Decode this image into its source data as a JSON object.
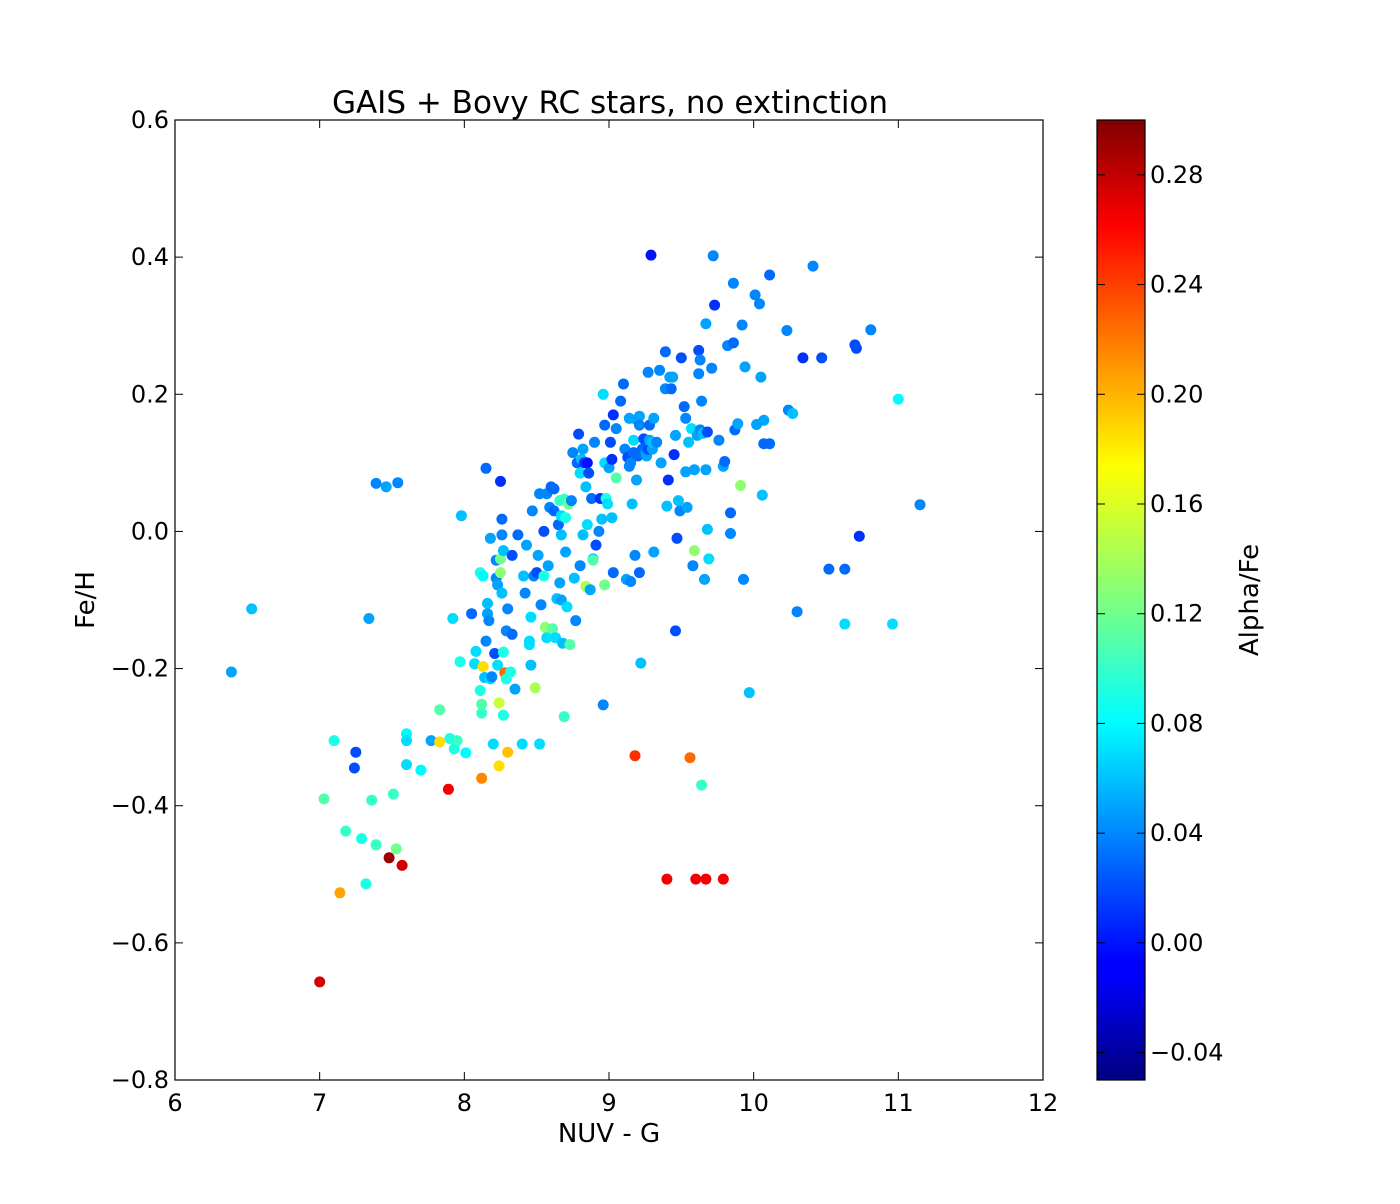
{
  "chart_data": {
    "type": "scatter",
    "title": "GAIS + Bovy RC stars, no extinction",
    "xlabel": "NUV - G",
    "ylabel": "Fe/H",
    "xlim": [
      6,
      12
    ],
    "ylim": [
      -0.8,
      0.6
    ],
    "xticks": [
      "6",
      "7",
      "8",
      "9",
      "10",
      "11",
      "12"
    ],
    "yticks": [
      "−0.8",
      "−0.6",
      "−0.4",
      "−0.2",
      "0.0",
      "0.2",
      "0.4",
      "0.6"
    ],
    "grid": false,
    "colorbar": {
      "label": "Alpha/Fe",
      "colormap": "jet",
      "range": [
        -0.05,
        0.3
      ],
      "ticks": [
        "−0.04",
        "0.00",
        "0.04",
        "0.08",
        "0.12",
        "0.16",
        "0.20",
        "0.24",
        "0.28"
      ]
    },
    "points": [
      [
        6.39,
        -0.205,
        0.05
      ],
      [
        6.53,
        -0.113,
        0.06
      ],
      [
        7.0,
        -0.657,
        0.27
      ],
      [
        7.03,
        -0.39,
        0.11
      ],
      [
        7.1,
        -0.305,
        0.09
      ],
      [
        7.14,
        -0.527,
        0.2
      ],
      [
        7.18,
        -0.437,
        0.1
      ],
      [
        7.24,
        -0.345,
        0.02
      ],
      [
        7.25,
        -0.322,
        0.02
      ],
      [
        7.29,
        -0.448,
        0.09
      ],
      [
        7.32,
        -0.514,
        0.09
      ],
      [
        7.34,
        -0.127,
        0.05
      ],
      [
        7.36,
        -0.392,
        0.1
      ],
      [
        7.39,
        0.07,
        0.04
      ],
      [
        7.39,
        -0.457,
        0.1
      ],
      [
        7.46,
        0.065,
        0.05
      ],
      [
        7.48,
        -0.476,
        0.29
      ],
      [
        7.51,
        -0.383,
        0.1
      ],
      [
        7.53,
        -0.463,
        0.12
      ],
      [
        7.54,
        0.071,
        0.04
      ],
      [
        7.57,
        -0.487,
        0.27
      ],
      [
        7.6,
        -0.295,
        0.08
      ],
      [
        7.6,
        -0.305,
        0.07
      ],
      [
        7.6,
        -0.34,
        0.07
      ],
      [
        7.7,
        -0.348,
        0.08
      ],
      [
        7.77,
        -0.305,
        0.05
      ],
      [
        7.83,
        -0.26,
        0.11
      ],
      [
        7.83,
        -0.307,
        0.18
      ],
      [
        7.89,
        -0.376,
        0.26
      ],
      [
        7.9,
        -0.302,
        0.09
      ],
      [
        7.92,
        -0.127,
        0.07
      ],
      [
        7.93,
        -0.317,
        0.09
      ],
      [
        7.95,
        -0.305,
        0.1
      ],
      [
        7.97,
        -0.19,
        0.09
      ],
      [
        7.98,
        0.023,
        0.06
      ],
      [
        8.01,
        -0.323,
        0.08
      ],
      [
        8.05,
        -0.12,
        0.03
      ],
      [
        8.07,
        -0.193,
        0.07
      ],
      [
        8.08,
        -0.175,
        0.07
      ],
      [
        8.11,
        -0.06,
        0.09
      ],
      [
        8.11,
        -0.232,
        0.09
      ],
      [
        8.12,
        -0.252,
        0.11
      ],
      [
        8.12,
        -0.265,
        0.1
      ],
      [
        8.12,
        -0.36,
        0.21
      ],
      [
        8.13,
        -0.065,
        0.08
      ],
      [
        8.13,
        -0.197,
        0.18
      ],
      [
        8.14,
        -0.213,
        0.06
      ],
      [
        8.15,
        0.092,
        0.03
      ],
      [
        8.15,
        -0.16,
        0.04
      ],
      [
        8.16,
        -0.105,
        0.06
      ],
      [
        8.16,
        -0.12,
        0.05
      ],
      [
        8.17,
        -0.13,
        0.04
      ],
      [
        8.18,
        -0.215,
        0.07
      ],
      [
        8.18,
        -0.01,
        0.05
      ],
      [
        8.19,
        -0.212,
        0.04
      ],
      [
        8.2,
        -0.31,
        0.07
      ],
      [
        8.21,
        -0.178,
        0.02
      ],
      [
        8.22,
        -0.042,
        0.04
      ],
      [
        8.22,
        -0.068,
        0.04
      ],
      [
        8.23,
        -0.078,
        0.05
      ],
      [
        8.23,
        -0.195,
        0.07
      ],
      [
        8.24,
        -0.25,
        0.15
      ],
      [
        8.24,
        -0.342,
        0.18
      ],
      [
        8.25,
        0.073,
        0.01
      ],
      [
        8.25,
        -0.04,
        0.12
      ],
      [
        8.25,
        -0.06,
        0.13
      ],
      [
        8.26,
        0.018,
        0.03
      ],
      [
        8.26,
        -0.005,
        0.04
      ],
      [
        8.26,
        -0.09,
        0.06
      ],
      [
        8.27,
        -0.268,
        0.09
      ],
      [
        8.27,
        -0.176,
        0.09
      ],
      [
        8.27,
        -0.028,
        0.06
      ],
      [
        8.28,
        -0.206,
        0.22
      ],
      [
        8.29,
        -0.145,
        0.04
      ],
      [
        8.29,
        -0.215,
        0.09
      ],
      [
        8.3,
        -0.322,
        0.19
      ],
      [
        8.3,
        -0.113,
        0.04
      ],
      [
        8.32,
        -0.205,
        0.09
      ],
      [
        8.33,
        -0.15,
        0.03
      ],
      [
        8.33,
        -0.035,
        0.02
      ],
      [
        8.35,
        -0.23,
        0.05
      ],
      [
        8.37,
        -0.005,
        0.03
      ],
      [
        8.4,
        -0.31,
        0.07
      ],
      [
        8.41,
        -0.065,
        0.06
      ],
      [
        8.42,
        -0.09,
        0.04
      ],
      [
        8.43,
        -0.02,
        0.05
      ],
      [
        8.45,
        -0.16,
        0.07
      ],
      [
        8.45,
        -0.165,
        0.07
      ],
      [
        8.46,
        -0.195,
        0.06
      ],
      [
        8.46,
        -0.125,
        0.07
      ],
      [
        8.47,
        0.03,
        0.04
      ],
      [
        8.48,
        -0.065,
        0.04
      ],
      [
        8.49,
        -0.228,
        0.14
      ],
      [
        8.5,
        -0.06,
        0.02
      ],
      [
        8.51,
        -0.035,
        0.05
      ],
      [
        8.52,
        0.055,
        0.04
      ],
      [
        8.52,
        -0.31,
        0.07
      ],
      [
        8.53,
        -0.107,
        0.04
      ],
      [
        8.55,
        -0.065,
        0.09
      ],
      [
        8.55,
        0.0,
        0.02
      ],
      [
        8.56,
        -0.14,
        0.13
      ],
      [
        8.57,
        0.055,
        0.04
      ],
      [
        8.57,
        -0.155,
        0.07
      ],
      [
        8.58,
        -0.05,
        0.05
      ],
      [
        8.59,
        0.035,
        0.04
      ],
      [
        8.6,
        0.065,
        0.03
      ],
      [
        8.61,
        -0.142,
        0.11
      ],
      [
        8.62,
        0.062,
        0.03
      ],
      [
        8.62,
        0.03,
        0.03
      ],
      [
        8.63,
        -0.155,
        0.07
      ],
      [
        8.64,
        -0.098,
        0.06
      ],
      [
        8.65,
        0.01,
        0.03
      ],
      [
        8.66,
        -0.075,
        0.05
      ],
      [
        8.66,
        0.045,
        0.1
      ],
      [
        8.67,
        -0.1,
        0.05
      ],
      [
        8.67,
        -0.005,
        0.06
      ],
      [
        8.67,
        0.023,
        0.07
      ],
      [
        8.68,
        -0.163,
        0.06
      ],
      [
        8.69,
        0.047,
        0.1
      ],
      [
        8.69,
        -0.27,
        0.1
      ],
      [
        8.7,
        0.02,
        0.09
      ],
      [
        8.7,
        -0.03,
        0.05
      ],
      [
        8.71,
        -0.11,
        0.07
      ],
      [
        8.72,
        0.04,
        0.12
      ],
      [
        8.73,
        -0.165,
        0.11
      ],
      [
        8.74,
        0.045,
        0.04
      ],
      [
        8.75,
        0.115,
        0.04
      ],
      [
        8.76,
        -0.068,
        0.06
      ],
      [
        8.77,
        -0.13,
        0.04
      ],
      [
        8.78,
        0.1,
        0.03
      ],
      [
        8.79,
        0.142,
        0.02
      ],
      [
        8.8,
        0.085,
        0.07
      ],
      [
        8.8,
        -0.05,
        0.04
      ],
      [
        8.81,
        0.105,
        0.06
      ],
      [
        8.82,
        0.12,
        0.05
      ],
      [
        8.82,
        -0.005,
        0.06
      ],
      [
        8.83,
        0.1,
        0.01
      ],
      [
        8.84,
        0.065,
        0.06
      ],
      [
        8.84,
        -0.08,
        0.14
      ],
      [
        8.85,
        0.1,
        0.0
      ],
      [
        8.85,
        0.01,
        0.07
      ],
      [
        8.86,
        0.085,
        0.02
      ],
      [
        8.87,
        -0.085,
        0.05
      ],
      [
        8.88,
        0.048,
        0.03
      ],
      [
        8.89,
        -0.04,
        0.06
      ],
      [
        8.89,
        -0.042,
        0.11
      ],
      [
        8.9,
        0.13,
        0.04
      ],
      [
        8.91,
        -0.02,
        0.02
      ],
      [
        8.93,
        0.0,
        0.04
      ],
      [
        8.94,
        0.048,
        0.01
      ],
      [
        8.95,
        0.018,
        0.06
      ],
      [
        8.96,
        0.2,
        0.07
      ],
      [
        8.96,
        -0.253,
        0.04
      ],
      [
        8.97,
        0.1,
        0.07
      ],
      [
        8.97,
        0.155,
        0.03
      ],
      [
        8.97,
        -0.078,
        0.12
      ],
      [
        8.98,
        0.048,
        0.09
      ],
      [
        8.99,
        0.04,
        0.07
      ],
      [
        9.0,
        0.093,
        0.05
      ],
      [
        9.01,
        0.13,
        0.02
      ],
      [
        9.02,
        0.02,
        0.06
      ],
      [
        9.02,
        0.105,
        0.01
      ],
      [
        9.03,
        -0.06,
        0.03
      ],
      [
        9.03,
        0.17,
        0.01
      ],
      [
        9.05,
        0.078,
        0.11
      ],
      [
        9.05,
        0.15,
        0.04
      ],
      [
        9.08,
        0.19,
        0.03
      ],
      [
        9.1,
        0.215,
        0.03
      ],
      [
        9.11,
        0.12,
        0.04
      ],
      [
        9.12,
        -0.07,
        0.05
      ],
      [
        9.13,
        0.108,
        0.02
      ],
      [
        9.14,
        0.165,
        0.05
      ],
      [
        9.14,
        0.095,
        0.04
      ],
      [
        9.15,
        -0.073,
        0.04
      ],
      [
        9.15,
        0.1,
        0.04
      ],
      [
        9.16,
        0.04,
        0.06
      ],
      [
        9.17,
        0.133,
        0.07
      ],
      [
        9.17,
        0.115,
        0.03
      ],
      [
        9.18,
        -0.327,
        0.24
      ],
      [
        9.18,
        -0.035,
        0.04
      ],
      [
        9.19,
        0.163,
        0.05
      ],
      [
        9.19,
        0.075,
        0.05
      ],
      [
        9.2,
        0.11,
        0.03
      ],
      [
        9.21,
        0.168,
        0.05
      ],
      [
        9.21,
        -0.06,
        0.03
      ],
      [
        9.21,
        0.155,
        0.04
      ],
      [
        9.22,
        -0.192,
        0.06
      ],
      [
        9.23,
        0.12,
        0.03
      ],
      [
        9.24,
        0.135,
        0.02
      ],
      [
        9.25,
        0.115,
        0.04
      ],
      [
        9.26,
        0.11,
        0.05
      ],
      [
        9.27,
        0.232,
        0.04
      ],
      [
        9.27,
        0.12,
        0.02
      ],
      [
        9.28,
        0.133,
        0.05
      ],
      [
        9.28,
        0.155,
        0.03
      ],
      [
        9.29,
        0.403,
        0.0
      ],
      [
        9.3,
        0.12,
        0.05
      ],
      [
        9.3,
        0.13,
        0.06
      ],
      [
        9.31,
        -0.03,
        0.05
      ],
      [
        9.31,
        0.165,
        0.05
      ],
      [
        9.33,
        0.13,
        0.04
      ],
      [
        9.35,
        0.235,
        0.04
      ],
      [
        9.36,
        0.1,
        0.05
      ],
      [
        9.39,
        0.262,
        0.03
      ],
      [
        9.39,
        0.208,
        0.04
      ],
      [
        9.4,
        -0.507,
        0.26
      ],
      [
        9.4,
        0.037,
        0.06
      ],
      [
        9.41,
        0.075,
        0.01
      ],
      [
        9.42,
        0.225,
        0.05
      ],
      [
        9.43,
        0.208,
        0.03
      ],
      [
        9.44,
        0.225,
        0.05
      ],
      [
        9.45,
        0.112,
        0.01
      ],
      [
        9.46,
        -0.145,
        0.02
      ],
      [
        9.46,
        0.14,
        0.05
      ],
      [
        9.47,
        -0.01,
        0.02
      ],
      [
        9.48,
        0.045,
        0.06
      ],
      [
        9.49,
        0.03,
        0.04
      ],
      [
        9.5,
        0.253,
        0.02
      ],
      [
        9.52,
        0.182,
        0.03
      ],
      [
        9.53,
        0.087,
        0.05
      ],
      [
        9.53,
        0.165,
        0.04
      ],
      [
        9.54,
        0.035,
        0.05
      ],
      [
        9.55,
        0.13,
        0.06
      ],
      [
        9.56,
        -0.33,
        0.22
      ],
      [
        9.57,
        0.15,
        0.07
      ],
      [
        9.58,
        -0.05,
        0.04
      ],
      [
        9.59,
        0.09,
        0.05
      ],
      [
        9.59,
        -0.028,
        0.13
      ],
      [
        9.6,
        -0.507,
        0.26
      ],
      [
        9.61,
        0.14,
        0.05
      ],
      [
        9.62,
        0.264,
        0.02
      ],
      [
        9.62,
        0.23,
        0.04
      ],
      [
        9.63,
        0.148,
        0.04
      ],
      [
        9.63,
        0.25,
        0.04
      ],
      [
        9.64,
        -0.37,
        0.1
      ],
      [
        9.64,
        0.19,
        0.04
      ],
      [
        9.65,
        0.143,
        0.06
      ],
      [
        9.66,
        -0.07,
        0.05
      ],
      [
        9.67,
        -0.507,
        0.26
      ],
      [
        9.67,
        0.303,
        0.05
      ],
      [
        9.67,
        0.09,
        0.05
      ],
      [
        9.68,
        0.145,
        0.02
      ],
      [
        9.68,
        0.003,
        0.06
      ],
      [
        9.69,
        -0.04,
        0.07
      ],
      [
        9.71,
        0.238,
        0.04
      ],
      [
        9.72,
        0.402,
        0.04
      ],
      [
        9.73,
        0.33,
        0.01
      ],
      [
        9.76,
        0.133,
        0.04
      ],
      [
        9.79,
        -0.507,
        0.26
      ],
      [
        9.79,
        0.095,
        0.05
      ],
      [
        9.8,
        0.102,
        0.03
      ],
      [
        9.82,
        0.271,
        0.04
      ],
      [
        9.84,
        -0.003,
        0.04
      ],
      [
        9.84,
        0.027,
        0.03
      ],
      [
        9.86,
        0.275,
        0.03
      ],
      [
        9.86,
        0.362,
        0.04
      ],
      [
        9.87,
        0.148,
        0.03
      ],
      [
        9.89,
        0.157,
        0.05
      ],
      [
        9.91,
        0.067,
        0.13
      ],
      [
        9.92,
        0.301,
        0.04
      ],
      [
        9.93,
        -0.07,
        0.04
      ],
      [
        9.94,
        0.24,
        0.05
      ],
      [
        9.97,
        -0.235,
        0.06
      ],
      [
        10.01,
        0.345,
        0.04
      ],
      [
        10.02,
        0.156,
        0.05
      ],
      [
        10.04,
        0.332,
        0.04
      ],
      [
        10.05,
        0.225,
        0.05
      ],
      [
        10.06,
        0.053,
        0.06
      ],
      [
        10.07,
        0.162,
        0.05
      ],
      [
        10.07,
        0.128,
        0.03
      ],
      [
        10.11,
        0.374,
        0.03
      ],
      [
        10.11,
        0.128,
        0.03
      ],
      [
        10.23,
        0.293,
        0.04
      ],
      [
        10.24,
        0.177,
        0.04
      ],
      [
        10.27,
        0.172,
        0.06
      ],
      [
        10.3,
        -0.117,
        0.04
      ],
      [
        10.34,
        0.253,
        0.01
      ],
      [
        10.41,
        0.387,
        0.04
      ],
      [
        10.47,
        0.253,
        0.02
      ],
      [
        10.52,
        -0.055,
        0.03
      ],
      [
        10.63,
        -0.055,
        0.03
      ],
      [
        10.63,
        -0.135,
        0.07
      ],
      [
        10.7,
        0.272,
        0.02
      ],
      [
        10.71,
        0.267,
        0.02
      ],
      [
        10.73,
        -0.007,
        0.01
      ],
      [
        10.81,
        0.294,
        0.04
      ],
      [
        10.96,
        -0.135,
        0.07
      ],
      [
        11.0,
        0.193,
        0.08
      ],
      [
        11.15,
        0.039,
        0.04
      ]
    ]
  }
}
